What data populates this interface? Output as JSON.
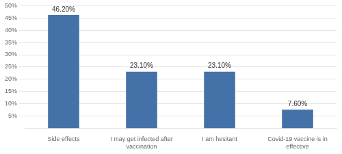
{
  "chart_data": {
    "type": "bar",
    "categories": [
      "Side effects",
      "I may get infected after\nvaccination",
      "I am hesitant",
      "Covid-19 vaccine is in\neffective"
    ],
    "values": [
      46.2,
      23.1,
      23.1,
      7.6
    ],
    "value_labels": [
      "46.20%",
      "23.10%",
      "23.10%",
      "7.60%"
    ],
    "data_labels": true,
    "color": "#4472a8",
    "ylim": [
      0,
      50
    ],
    "yticks": [
      {
        "value": 5,
        "label": "5%"
      },
      {
        "value": 10,
        "label": "10%"
      },
      {
        "value": 15,
        "label": "15%"
      },
      {
        "value": 20,
        "label": "20%"
      },
      {
        "value": 25,
        "label": "25%"
      },
      {
        "value": 30,
        "label": "30%"
      },
      {
        "value": 35,
        "label": "35%"
      },
      {
        "value": 40,
        "label": "40%"
      },
      {
        "value": 45,
        "label": "45%"
      },
      {
        "value": 50,
        "label": "50%"
      }
    ],
    "grid": true
  }
}
